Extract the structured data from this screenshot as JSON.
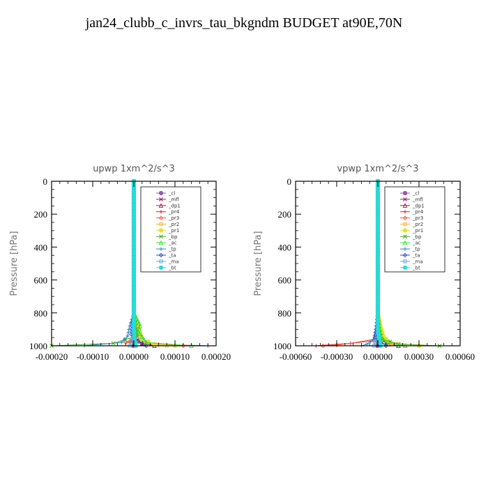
{
  "figure": {
    "title": "jan24_clubb_c_invrs_tau_bkgndm  BUDGET at90E,70N"
  },
  "legend_entries": [
    {
      "name": "_cl",
      "color": "#9955bb"
    },
    {
      "name": "_mfl",
      "color": "#8b1a5a"
    },
    {
      "name": "_dp1",
      "color": "#aa1144"
    },
    {
      "name": "_pr4",
      "color": "#dd2222"
    },
    {
      "name": "_pr3",
      "color": "#ff5533"
    },
    {
      "name": "_pr2",
      "color": "#ffaa33"
    },
    {
      "name": "_pr1",
      "color": "#e8e022"
    },
    {
      "name": "_bp",
      "color": "#44aa22"
    },
    {
      "name": "_ac",
      "color": "#33dd33"
    },
    {
      "name": "_tp",
      "color": "#2288cc"
    },
    {
      "name": "_ta",
      "color": "#3344bb"
    },
    {
      "name": "_ma",
      "color": "#55aadd"
    },
    {
      "name": "_bt",
      "color": "#22dddd"
    }
  ],
  "chart_data": [
    {
      "type": "line",
      "title": "upwp   1xm^2/s^3",
      "ylabel": "Pressure [hPa]",
      "xlim": [
        -0.0002,
        0.0002
      ],
      "ylim": [
        1000,
        0
      ],
      "xticks": [
        -0.0002,
        -0.0001,
        0.0,
        0.0001,
        0.0002
      ],
      "xtick_labels": [
        "-0.00020",
        "-0.00010",
        "0.00000",
        "0.00010",
        "0.00020"
      ],
      "yticks": [
        0,
        200,
        400,
        600,
        800,
        1000
      ],
      "ytick_labels": [
        "0",
        "200",
        "400",
        "600",
        "800",
        "1000"
      ],
      "legend_position": "top-right",
      "series": [
        {
          "name": "_cl",
          "color": "#9955bb",
          "points": [
            [
              0,
              0
            ],
            [
              0,
              200
            ],
            [
              0,
              400
            ],
            [
              0,
              600
            ],
            [
              0,
              800
            ],
            [
              0,
              900
            ],
            [
              0,
              960
            ],
            [
              0,
              1000
            ]
          ]
        },
        {
          "name": "_mfl",
          "color": "#8b1a5a",
          "points": [
            [
              0,
              0
            ],
            [
              0,
              200
            ],
            [
              0,
              400
            ],
            [
              0,
              600
            ],
            [
              0,
              800
            ],
            [
              0,
              900
            ],
            [
              0,
              960
            ],
            [
              0,
              1000
            ]
          ]
        },
        {
          "name": "_dp1",
          "color": "#aa1144",
          "points": [
            [
              0,
              0
            ],
            [
              0,
              800
            ],
            [
              0,
              900
            ],
            [
              3e-06,
              950
            ],
            [
              2e-05,
              985
            ],
            [
              5e-05,
              1000
            ]
          ]
        },
        {
          "name": "_pr4",
          "color": "#dd2222",
          "points": [
            [
              0,
              0
            ],
            [
              0,
              800
            ],
            [
              0,
              950
            ],
            [
              -1e-05,
              975
            ],
            [
              3e-05,
              990
            ],
            [
              0.00018,
              1000
            ]
          ]
        },
        {
          "name": "_pr3",
          "color": "#ff5533",
          "points": [
            [
              0,
              0
            ],
            [
              0,
              800
            ],
            [
              2e-06,
              900
            ],
            [
              -5e-06,
              960
            ],
            [
              -2e-05,
              980
            ],
            [
              6e-05,
              992
            ],
            [
              0.00012,
              1000
            ]
          ]
        },
        {
          "name": "_pr2",
          "color": "#ffaa33",
          "points": [
            [
              0,
              0
            ],
            [
              0,
              800
            ],
            [
              5e-06,
              900
            ],
            [
              1e-05,
              960
            ],
            [
              3e-05,
              985
            ],
            [
              8e-05,
              1000
            ]
          ]
        },
        {
          "name": "_pr1",
          "color": "#e8e022",
          "points": [
            [
              0,
              0
            ],
            [
              0,
              800
            ],
            [
              8e-06,
              860
            ],
            [
              1.5e-05,
              920
            ],
            [
              2e-05,
              960
            ],
            [
              5e-05,
              990
            ],
            [
              0.0001,
              1000
            ]
          ]
        },
        {
          "name": "_bp",
          "color": "#44aa22",
          "points": [
            [
              0,
              0
            ],
            [
              0,
              800
            ],
            [
              4e-06,
              880
            ],
            [
              8e-06,
              940
            ],
            [
              -5e-05,
              985
            ],
            [
              -0.0002,
              1000
            ]
          ]
        },
        {
          "name": "_ac",
          "color": "#33dd33",
          "points": [
            [
              0,
              0
            ],
            [
              0,
              800
            ],
            [
              1e-05,
              850
            ],
            [
              1.5e-05,
              880
            ],
            [
              1e-05,
              910
            ],
            [
              3e-05,
              980
            ],
            [
              0.00014,
              1000
            ]
          ]
        },
        {
          "name": "_tp",
          "color": "#2288cc",
          "points": [
            [
              0,
              0
            ],
            [
              0,
              800
            ],
            [
              -8e-06,
              860
            ],
            [
              -1.2e-05,
              900
            ],
            [
              -1.5e-05,
              940
            ],
            [
              -3e-05,
              980
            ],
            [
              -0.00012,
              1000
            ]
          ]
        },
        {
          "name": "_ta",
          "color": "#3344bb",
          "points": [
            [
              0,
              0
            ],
            [
              0,
              800
            ],
            [
              -4e-06,
              880
            ],
            [
              -6e-06,
              930
            ],
            [
              1e-05,
              970
            ],
            [
              3e-05,
              1000
            ]
          ]
        },
        {
          "name": "_ma",
          "color": "#55aadd",
          "points": [
            [
              0,
              0
            ],
            [
              0,
              800
            ],
            [
              0,
              900
            ],
            [
              -4e-06,
              960
            ],
            [
              -1e-05,
              1000
            ]
          ]
        },
        {
          "name": "_bt",
          "color": "#22dddd",
          "points": [
            [
              0,
              0
            ],
            [
              0,
              800
            ],
            [
              0,
              900
            ],
            [
              2e-06,
              960
            ],
            [
              5e-06,
              1000
            ]
          ]
        }
      ]
    },
    {
      "type": "line",
      "title": "vpwp   1xm^2/s^3",
      "ylabel": "Pressure [hPa]",
      "xlim": [
        -0.0006,
        0.0006
      ],
      "ylim": [
        1000,
        0
      ],
      "xticks": [
        -0.0006,
        -0.0003,
        0.0,
        0.0003,
        0.0006
      ],
      "xtick_labels": [
        "-0.00060",
        "-0.00030",
        "0.00000",
        "0.00030",
        "0.00060"
      ],
      "yticks": [
        0,
        200,
        400,
        600,
        800,
        1000
      ],
      "ytick_labels": [
        "0",
        "200",
        "400",
        "600",
        "800",
        "1000"
      ],
      "legend_position": "top-right",
      "series": [
        {
          "name": "_cl",
          "color": "#9955bb",
          "points": [
            [
              0,
              0
            ],
            [
              0,
              200
            ],
            [
              0,
              400
            ],
            [
              0,
              600
            ],
            [
              0,
              800
            ],
            [
              0,
              900
            ],
            [
              0,
              960
            ],
            [
              0,
              1000
            ]
          ]
        },
        {
          "name": "_mfl",
          "color": "#8b1a5a",
          "points": [
            [
              0,
              0
            ],
            [
              0,
              200
            ],
            [
              0,
              400
            ],
            [
              0,
              600
            ],
            [
              0,
              800
            ],
            [
              0,
              900
            ],
            [
              0,
              960
            ],
            [
              0,
              1000
            ]
          ]
        },
        {
          "name": "_dp1",
          "color": "#aa1144",
          "points": [
            [
              0,
              0
            ],
            [
              0,
              800
            ],
            [
              0,
              900
            ],
            [
              1e-05,
              960
            ],
            [
              8e-05,
              990
            ],
            [
              0.00015,
              1000
            ]
          ]
        },
        {
          "name": "_pr4",
          "color": "#dd2222",
          "points": [
            [
              0,
              0
            ],
            [
              0,
              800
            ],
            [
              0,
              900
            ],
            [
              -2e-05,
              960
            ],
            [
              -0.0002,
              985
            ],
            [
              -0.00045,
              1000
            ]
          ]
        },
        {
          "name": "_pr3",
          "color": "#ff5533",
          "points": [
            [
              0,
              0
            ],
            [
              0,
              800
            ],
            [
              0,
              900
            ],
            [
              -3e-05,
              970
            ],
            [
              -0.0003,
              995
            ],
            [
              -0.0004,
              1000
            ]
          ]
        },
        {
          "name": "_pr2",
          "color": "#ffaa33",
          "points": [
            [
              0,
              0
            ],
            [
              0,
              800
            ],
            [
              1e-05,
              900
            ],
            [
              3e-05,
              960
            ],
            [
              0.0001,
              985
            ],
            [
              0.0002,
              1000
            ]
          ]
        },
        {
          "name": "_pr1",
          "color": "#e8e022",
          "points": [
            [
              0,
              0
            ],
            [
              0,
              800
            ],
            [
              2e-05,
              880
            ],
            [
              4e-05,
              940
            ],
            [
              8e-05,
              975
            ],
            [
              0.0003,
              1000
            ]
          ]
        },
        {
          "name": "_bp",
          "color": "#44aa22",
          "points": [
            [
              0,
              0
            ],
            [
              0,
              800
            ],
            [
              1e-05,
              900
            ],
            [
              3e-05,
              960
            ],
            [
              0.00015,
              990
            ],
            [
              0.00045,
              1000
            ]
          ]
        },
        {
          "name": "_ac",
          "color": "#33dd33",
          "points": [
            [
              0,
              0
            ],
            [
              0,
              800
            ],
            [
              1e-05,
              880
            ],
            [
              2e-05,
              940
            ],
            [
              6e-05,
              980
            ],
            [
              0.0002,
              1000
            ]
          ]
        },
        {
          "name": "_tp",
          "color": "#2288cc",
          "points": [
            [
              0,
              0
            ],
            [
              0,
              800
            ],
            [
              -1e-05,
              860
            ],
            [
              -2e-05,
              920
            ],
            [
              -3e-05,
              960
            ],
            [
              -8e-05,
              990
            ],
            [
              -0.00012,
              1000
            ]
          ]
        },
        {
          "name": "_ta",
          "color": "#3344bb",
          "points": [
            [
              0,
              0
            ],
            [
              0,
              800
            ],
            [
              -1e-05,
              900
            ],
            [
              -2e-05,
              950
            ],
            [
              2e-05,
              980
            ],
            [
              6e-05,
              1000
            ]
          ]
        },
        {
          "name": "_ma",
          "color": "#55aadd",
          "points": [
            [
              0,
              0
            ],
            [
              0,
              800
            ],
            [
              0,
              900
            ],
            [
              -1e-05,
              960
            ],
            [
              -3e-05,
              1000
            ]
          ]
        },
        {
          "name": "_bt",
          "color": "#22dddd",
          "points": [
            [
              0,
              0
            ],
            [
              0,
              800
            ],
            [
              0,
              900
            ],
            [
              1e-05,
              960
            ],
            [
              2e-05,
              1000
            ]
          ]
        }
      ]
    }
  ]
}
